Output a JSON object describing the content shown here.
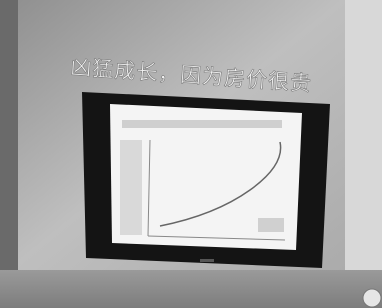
{
  "wall_text": "凶猛成长，因为房价很贵"
}
